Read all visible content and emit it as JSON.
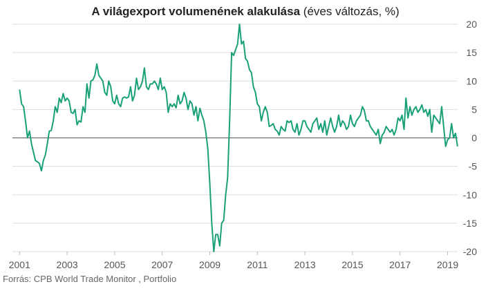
{
  "chart_data": {
    "type": "line",
    "title": "A világexport volumenének alakulása",
    "subtitle": "(éves változás, %)",
    "source": "Forrás: CPB World Trade Monitor , Portfolio",
    "series": [
      {
        "name": "Világexport",
        "color": "#19a078",
        "x": [
          2001,
          2001.083,
          2001.167,
          2001.25,
          2001.333,
          2001.417,
          2001.5,
          2001.583,
          2001.667,
          2001.75,
          2001.833,
          2001.917,
          2002,
          2002.083,
          2002.167,
          2002.25,
          2002.333,
          2002.417,
          2002.5,
          2002.583,
          2002.667,
          2002.75,
          2002.833,
          2002.917,
          2003,
          2003.083,
          2003.167,
          2003.25,
          2003.333,
          2003.417,
          2003.5,
          2003.583,
          2003.667,
          2003.75,
          2003.833,
          2003.917,
          2004,
          2004.083,
          2004.167,
          2004.25,
          2004.333,
          2004.417,
          2004.5,
          2004.583,
          2004.667,
          2004.75,
          2004.833,
          2004.917,
          2005,
          2005.083,
          2005.167,
          2005.25,
          2005.333,
          2005.417,
          2005.5,
          2005.583,
          2005.667,
          2005.75,
          2005.833,
          2005.917,
          2006,
          2006.083,
          2006.167,
          2006.25,
          2006.333,
          2006.417,
          2006.5,
          2006.583,
          2006.667,
          2006.75,
          2006.833,
          2006.917,
          2007,
          2007.083,
          2007.167,
          2007.25,
          2007.333,
          2007.417,
          2007.5,
          2007.583,
          2007.667,
          2007.75,
          2007.833,
          2007.917,
          2008,
          2008.083,
          2008.167,
          2008.25,
          2008.333,
          2008.417,
          2008.5,
          2008.583,
          2008.667,
          2008.75,
          2008.833,
          2008.917,
          2009,
          2009.083,
          2009.167,
          2009.25,
          2009.333,
          2009.417,
          2009.5,
          2009.583,
          2009.667,
          2009.75,
          2009.833,
          2009.917,
          2010,
          2010.083,
          2010.167,
          2010.25,
          2010.333,
          2010.417,
          2010.5,
          2010.583,
          2010.667,
          2010.75,
          2010.833,
          2010.917,
          2011,
          2011.083,
          2011.167,
          2011.25,
          2011.333,
          2011.417,
          2011.5,
          2011.583,
          2011.667,
          2011.75,
          2011.833,
          2011.917,
          2012,
          2012.083,
          2012.167,
          2012.25,
          2012.333,
          2012.417,
          2012.5,
          2012.583,
          2012.667,
          2012.75,
          2012.833,
          2012.917,
          2013,
          2013.083,
          2013.167,
          2013.25,
          2013.333,
          2013.417,
          2013.5,
          2013.583,
          2013.667,
          2013.75,
          2013.833,
          2013.917,
          2014,
          2014.083,
          2014.167,
          2014.25,
          2014.333,
          2014.417,
          2014.5,
          2014.583,
          2014.667,
          2014.75,
          2014.833,
          2014.917,
          2015,
          2015.083,
          2015.167,
          2015.25,
          2015.333,
          2015.417,
          2015.5,
          2015.583,
          2015.667,
          2015.75,
          2015.833,
          2015.917,
          2016,
          2016.083,
          2016.167,
          2016.25,
          2016.333,
          2016.417,
          2016.5,
          2016.583,
          2016.667,
          2016.75,
          2016.833,
          2016.917,
          2017,
          2017.083,
          2017.167,
          2017.25,
          2017.333,
          2017.417,
          2017.5,
          2017.583,
          2017.667,
          2017.75,
          2017.833,
          2017.917,
          2018,
          2018.083,
          2018.167,
          2018.25,
          2018.333,
          2018.417,
          2018.5,
          2018.583,
          2018.667,
          2018.75,
          2018.833,
          2018.917,
          2019,
          2019.083,
          2019.167,
          2019.25,
          2019.333,
          2019.417
        ],
        "values": [
          8.5,
          6,
          5.5,
          3,
          0,
          1.2,
          -1,
          -2.5,
          -4,
          -4.2,
          -4.5,
          -5.8,
          -4,
          -3,
          -1,
          1.2,
          1.3,
          3,
          5.5,
          4.5,
          7,
          6.2,
          7.8,
          6.5,
          7,
          6.5,
          4.5,
          4.3,
          5,
          2.3,
          3,
          2.8,
          5.5,
          4.5,
          9.5,
          7,
          10,
          10.2,
          11,
          13,
          11,
          10.5,
          10,
          8,
          7.5,
          10,
          9,
          6.5,
          6,
          7.5,
          6,
          5.5,
          7,
          7.2,
          7,
          7.2,
          9,
          6.5,
          7.5,
          10.5,
          8.5,
          9,
          10,
          12.3,
          9,
          8.5,
          9.5,
          9.5,
          10,
          9.5,
          8.5,
          10.5,
          8.5,
          9,
          8,
          4.5,
          6,
          5.5,
          6,
          5.3,
          7.5,
          6,
          6.5,
          8,
          7,
          5,
          6.5,
          6,
          4,
          5.5,
          3,
          5.2,
          4,
          3,
          1,
          -2,
          -8,
          -15,
          -20,
          -17,
          -17,
          -19,
          -15,
          -14.5,
          -10,
          -7,
          3,
          15,
          14.5,
          15.5,
          16.5,
          20,
          16.5,
          17,
          14,
          13.5,
          12,
          11.5,
          9,
          8,
          6,
          5.5,
          3,
          4.5,
          5.5,
          4.5,
          2,
          2.2,
          2.5,
          1.5,
          1.2,
          0.5,
          2,
          1.5,
          1.2,
          3,
          2.7,
          3,
          1.5,
          1,
          2.5,
          0.5,
          1.5,
          3,
          3,
          2,
          1.5,
          1,
          2.5,
          3,
          3.5,
          1.5,
          2.5,
          1,
          3,
          0.5,
          2,
          3.5,
          2,
          1,
          2,
          4,
          2,
          3,
          2.5,
          1.5,
          2,
          4,
          2.5,
          2,
          3,
          3.5,
          4,
          5.5,
          4.8,
          3,
          3,
          2,
          1.5,
          1,
          0.5,
          1.5,
          -1,
          0.5,
          1,
          2,
          1.5,
          1,
          1.5,
          0.5,
          1.5,
          3.5,
          3,
          4,
          1.5,
          7,
          3.5,
          5.5,
          4,
          5,
          5.5,
          4.5,
          5,
          5.8,
          4.5,
          5,
          3.8,
          5,
          1,
          4,
          3.5,
          3,
          2.5,
          5.5,
          2,
          -1.5,
          -0.3,
          0,
          2.5,
          0,
          0.8,
          -1.5
        ]
      }
    ],
    "xlim": [
      2000.7,
      2019.42
    ],
    "xticks": [
      2001,
      2003,
      2005,
      2007,
      2009,
      2011,
      2013,
      2015,
      2017,
      2019
    ],
    "ylim": [
      -20,
      20
    ],
    "yticks": [
      -20,
      -15,
      -10,
      -5,
      0,
      5,
      10,
      15,
      20
    ],
    "grid": true
  }
}
